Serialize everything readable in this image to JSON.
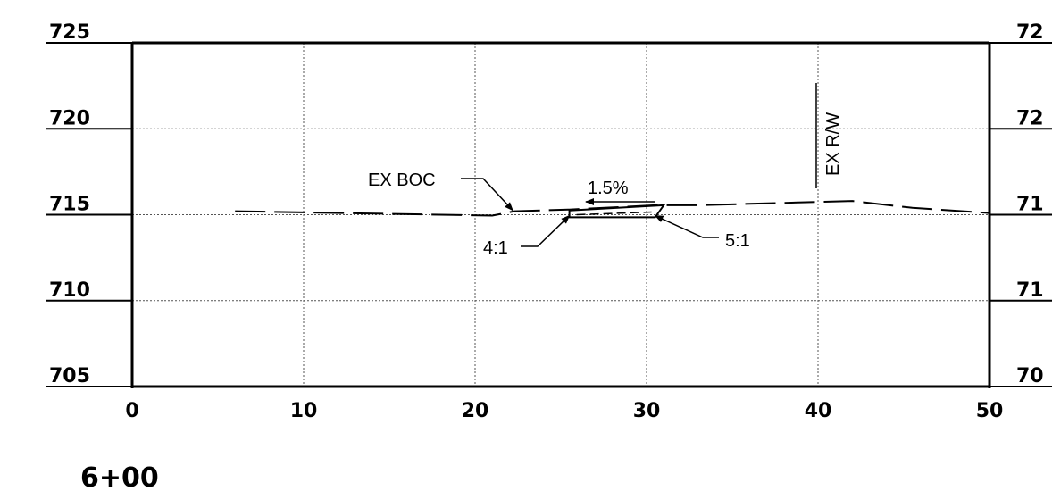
{
  "chart_data": {
    "type": "line",
    "title": "",
    "xlabel": "",
    "ylabel": "",
    "xlim": [
      0,
      50
    ],
    "ylim": [
      705,
      725
    ],
    "grid": true,
    "x_ticks": [
      "0",
      "10",
      "20",
      "30",
      "40",
      "50"
    ],
    "y_ticks_left": [
      "705",
      "710",
      "715",
      "720",
      "725"
    ],
    "y_ticks_right": [
      "70",
      "71",
      "71",
      "72",
      "72"
    ],
    "series": [
      {
        "style": "dashed",
        "points": [
          [
            6,
            715.2
          ],
          [
            21,
            714.95
          ],
          [
            22.3,
            715.2
          ],
          [
            25.5,
            715.3
          ],
          [
            30.5,
            715.55
          ],
          [
            33,
            715.55
          ],
          [
            42,
            715.8
          ],
          [
            45.5,
            715.4
          ],
          [
            50,
            715.1
          ]
        ]
      }
    ],
    "proposed_section": {
      "top": [
        [
          25.5,
          715.25
        ],
        [
          31,
          715.55
        ]
      ],
      "bottom": [
        [
          25.5,
          714.85
        ],
        [
          30.5,
          714.85
        ]
      ]
    },
    "annotations": [
      {
        "text": "EX BOC",
        "x": 22.3,
        "y": 715.2
      },
      {
        "text": "1.5%",
        "x": 28.5,
        "y": 715.5
      },
      {
        "text": "4:1",
        "x": 25.5,
        "y": 715.05
      },
      {
        "text": "5:1",
        "x": 30.5,
        "y": 715.2
      },
      {
        "text": "EX R/W",
        "x": 40,
        "y": 719.5
      }
    ]
  },
  "station": "6+00"
}
